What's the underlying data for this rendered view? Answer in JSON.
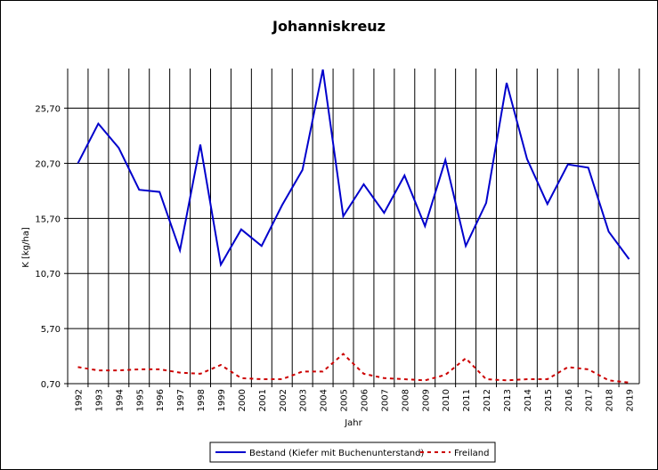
{
  "chart_data": {
    "type": "line",
    "title": "Johanniskreuz",
    "xlabel": "Jahr",
    "ylabel": "K [kg/ha]",
    "x": [
      "1992",
      "1993",
      "1994",
      "1995",
      "1996",
      "1997",
      "1998",
      "1999",
      "2000",
      "2001",
      "2002",
      "2003",
      "2004",
      "2005",
      "2006",
      "2007",
      "2008",
      "2009",
      "2010",
      "2011",
      "2012",
      "2013",
      "2014",
      "2015",
      "2016",
      "2017",
      "2018",
      "2019"
    ],
    "yticks": [
      "0,70",
      "5,70",
      "10,70",
      "15,70",
      "20,70",
      "25,70"
    ],
    "ylim": [
      0.7,
      29.3
    ],
    "grid": true,
    "legend_position": "bottom",
    "series": [
      {
        "name": "Bestand (Kiefer mit Buchenunterstand)",
        "color": "#0000cc",
        "style": "solid",
        "values": [
          20.7,
          24.3,
          22.1,
          18.3,
          18.1,
          12.8,
          22.4,
          11.5,
          14.7,
          13.2,
          16.9,
          20.1,
          29.2,
          15.9,
          18.8,
          16.2,
          19.6,
          15.0,
          21.0,
          13.2,
          17.1,
          28.0,
          21.1,
          17.0,
          20.6,
          20.3,
          14.5,
          12.0
        ]
      },
      {
        "name": "Freiland",
        "color": "#cc0000",
        "style": "dashed",
        "values": [
          2.2,
          1.9,
          1.9,
          2.0,
          2.0,
          1.7,
          1.6,
          2.4,
          1.2,
          1.1,
          1.1,
          1.8,
          1.8,
          3.4,
          1.6,
          1.2,
          1.1,
          1.0,
          1.5,
          3.0,
          1.1,
          1.0,
          1.1,
          1.1,
          2.2,
          2.0,
          1.0,
          0.8
        ]
      }
    ]
  }
}
